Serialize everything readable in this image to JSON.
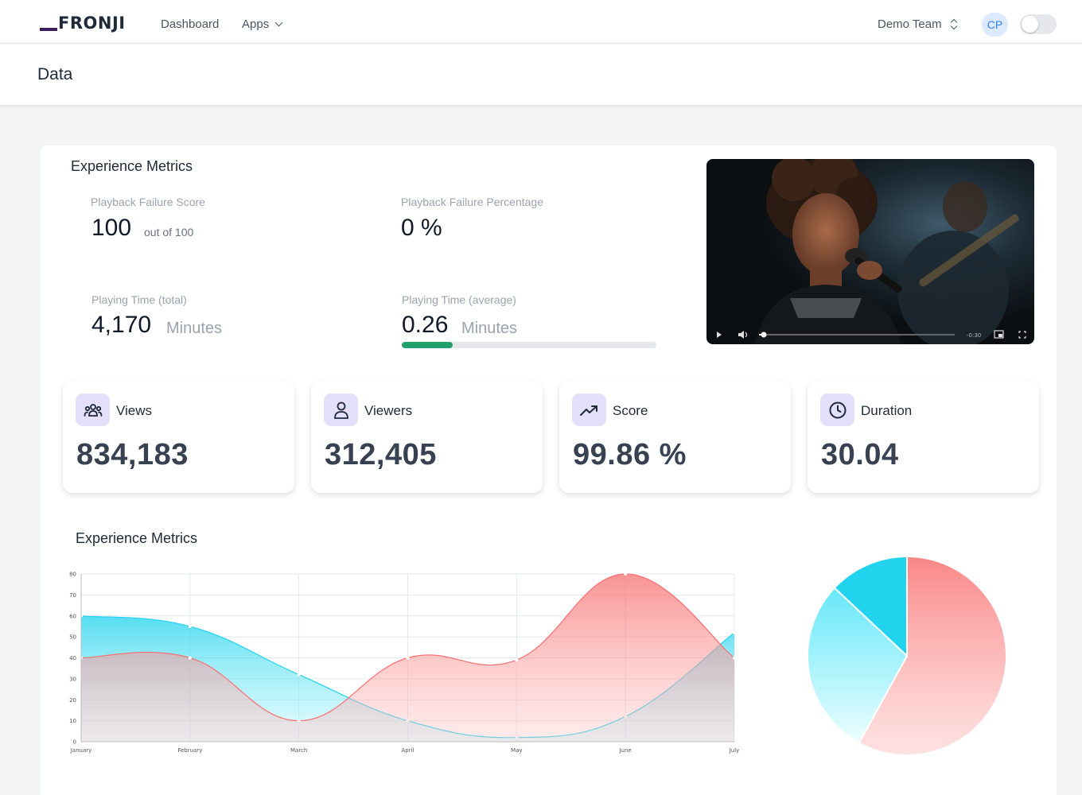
{
  "nav": {
    "logo": "FRONJI",
    "links": [
      "Dashboard",
      "Apps"
    ],
    "team": "Demo Team",
    "avatar_initials": "CP",
    "toggle_on": false
  },
  "page": {
    "title": "Data"
  },
  "experience": {
    "title": "Experience Metrics",
    "failure_score": {
      "label": "Playback Failure Score",
      "value": "100",
      "sub": "out of 100"
    },
    "failure_pct": {
      "label": "Playback Failure Percentage",
      "value": "0 %"
    },
    "playing_total": {
      "label": "Playing Time (total)",
      "value": "4,170",
      "unit": "Minutes"
    },
    "playing_avg": {
      "label": "Playing Time (average)",
      "value": "0.26",
      "unit": "Minutes",
      "progress": 0.2
    },
    "video": {
      "time_remaining": "-0:30"
    }
  },
  "stats": [
    {
      "label": "Views",
      "value": "834,183",
      "icon": "users-group-icon"
    },
    {
      "label": "Viewers",
      "value": "312,405",
      "icon": "user-icon"
    },
    {
      "label": "Score",
      "value": "99.86 %",
      "icon": "trending-up-icon"
    },
    {
      "label": "Duration",
      "value": "30.04",
      "icon": "clock-icon"
    }
  ],
  "chart_section": {
    "title": "Experience Metrics"
  },
  "colors": {
    "cyan": "#22d3ee",
    "red": "#f87171",
    "brand": "#3b1f5c",
    "icon_bg": "#e4e0fb",
    "progress": "#22a06b"
  },
  "chart_data": [
    {
      "type": "area",
      "title": "",
      "categories": [
        "January",
        "February",
        "March",
        "April",
        "May",
        "June",
        "July"
      ],
      "ylim": [
        0,
        80
      ],
      "yticks": [
        0,
        10,
        20,
        30,
        40,
        50,
        60,
        70,
        80
      ],
      "grid": true,
      "series": [
        {
          "values": [
            60,
            55,
            32,
            10,
            2,
            12,
            52
          ],
          "color": "#22d3ee"
        },
        {
          "values": [
            40,
            40,
            10,
            40,
            39,
            80,
            40
          ],
          "color": "#f87171"
        }
      ]
    },
    {
      "type": "pie",
      "values": [
        58,
        29,
        13
      ],
      "colors": [
        "#f87171",
        "#67e8f9",
        "#22d3ee"
      ]
    }
  ]
}
